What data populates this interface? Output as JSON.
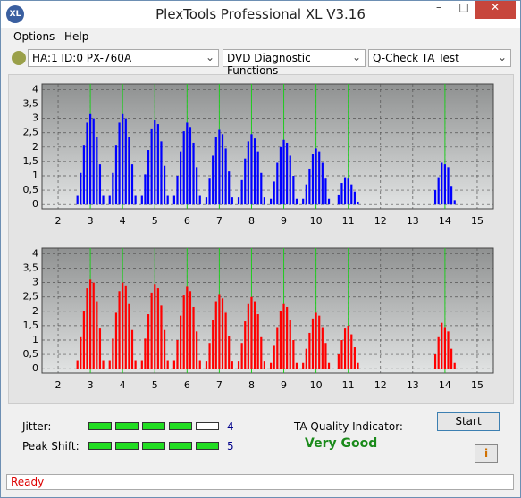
{
  "window": {
    "title": "PlexTools Professional XL V3.16"
  },
  "menu": [
    "Options",
    "Help"
  ],
  "toolbar": {
    "drive": "HA:1 ID:0  PX-760A",
    "function": "DVD Diagnostic Functions",
    "test": "Q-Check TA Test"
  },
  "chart_data": [
    {
      "type": "bar",
      "color": "#0000ff",
      "marker_color": "#22cc22",
      "grid": true,
      "xlim": [
        1.5,
        15.5
      ],
      "ylim": [
        -0.15,
        4.2
      ],
      "xticks": [
        2,
        3,
        4,
        5,
        6,
        7,
        8,
        9,
        10,
        11,
        12,
        13,
        14,
        15
      ],
      "yticks": [
        0,
        {
          "value": 0.5,
          "label": "0,5"
        },
        1,
        {
          "value": 1.5,
          "label": "1,5"
        },
        2,
        {
          "value": 2.5,
          "label": "2,5"
        },
        3,
        {
          "value": 3.5,
          "label": "3,5"
        },
        4
      ],
      "markers": [
        3,
        4,
        5,
        6,
        7,
        8,
        9,
        10,
        11,
        14
      ],
      "x": [
        2.6,
        2.7,
        2.8,
        2.9,
        3.0,
        3.1,
        3.2,
        3.3,
        3.4,
        3.6,
        3.7,
        3.8,
        3.9,
        4.0,
        4.1,
        4.2,
        4.3,
        4.4,
        4.6,
        4.7,
        4.8,
        4.9,
        5.0,
        5.1,
        5.2,
        5.3,
        5.4,
        5.6,
        5.7,
        5.8,
        5.9,
        6.0,
        6.1,
        6.2,
        6.3,
        6.4,
        6.6,
        6.7,
        6.8,
        6.9,
        7.0,
        7.1,
        7.2,
        7.3,
        7.4,
        7.6,
        7.7,
        7.8,
        7.9,
        8.0,
        8.1,
        8.2,
        8.3,
        8.4,
        8.6,
        8.7,
        8.8,
        8.9,
        9.0,
        9.1,
        9.2,
        9.3,
        9.4,
        9.6,
        9.7,
        9.8,
        9.9,
        10.0,
        10.1,
        10.2,
        10.3,
        10.4,
        10.7,
        10.8,
        10.9,
        11.0,
        11.1,
        11.2,
        11.3,
        13.7,
        13.8,
        13.9,
        14.0,
        14.1,
        14.2,
        14.3
      ],
      "values": [
        0.3,
        1.1,
        2.05,
        2.85,
        3.15,
        3.0,
        2.35,
        1.4,
        0.3,
        0.3,
        1.1,
        2.05,
        2.85,
        3.15,
        3.0,
        2.35,
        1.4,
        0.3,
        0.3,
        1.05,
        1.9,
        2.65,
        2.95,
        2.8,
        2.2,
        1.35,
        0.3,
        0.3,
        1.0,
        1.85,
        2.55,
        2.85,
        2.7,
        2.15,
        1.3,
        0.3,
        0.25,
        0.9,
        1.7,
        2.35,
        2.6,
        2.45,
        1.95,
        1.15,
        0.25,
        0.25,
        0.85,
        1.6,
        2.2,
        2.45,
        2.3,
        1.85,
        1.1,
        0.25,
        0.2,
        0.8,
        1.45,
        2.0,
        2.25,
        2.15,
        1.7,
        1.0,
        0.2,
        0.2,
        0.7,
        1.25,
        1.75,
        1.95,
        1.85,
        1.45,
        0.9,
        0.2,
        0.35,
        0.75,
        0.95,
        0.9,
        0.7,
        0.45,
        0.1,
        0.5,
        0.95,
        1.45,
        1.4,
        1.3,
        0.65,
        0.15
      ]
    },
    {
      "type": "bar",
      "color": "#ff0000",
      "marker_color": "#22cc22",
      "grid": true,
      "xlim": [
        1.5,
        15.5
      ],
      "ylim": [
        -0.15,
        4.2
      ],
      "xticks": [
        2,
        3,
        4,
        5,
        6,
        7,
        8,
        9,
        10,
        11,
        12,
        13,
        14,
        15
      ],
      "yticks": [
        0,
        {
          "value": 0.5,
          "label": "0,5"
        },
        1,
        {
          "value": 1.5,
          "label": "1,5"
        },
        2,
        {
          "value": 2.5,
          "label": "2,5"
        },
        3,
        {
          "value": 3.5,
          "label": "3,5"
        },
        4
      ],
      "markers": [
        3,
        4,
        5,
        6,
        7,
        8,
        9,
        10,
        11,
        14
      ],
      "x": [
        2.6,
        2.7,
        2.8,
        2.9,
        3.0,
        3.1,
        3.2,
        3.3,
        3.4,
        3.6,
        3.7,
        3.8,
        3.9,
        4.0,
        4.1,
        4.2,
        4.3,
        4.4,
        4.6,
        4.7,
        4.8,
        4.9,
        5.0,
        5.1,
        5.2,
        5.3,
        5.4,
        5.6,
        5.7,
        5.8,
        5.9,
        6.0,
        6.1,
        6.2,
        6.3,
        6.4,
        6.6,
        6.7,
        6.8,
        6.9,
        7.0,
        7.1,
        7.2,
        7.3,
        7.4,
        7.6,
        7.7,
        7.8,
        7.9,
        8.0,
        8.1,
        8.2,
        8.3,
        8.4,
        8.6,
        8.7,
        8.8,
        8.9,
        9.0,
        9.1,
        9.2,
        9.3,
        9.4,
        9.6,
        9.7,
        9.8,
        9.9,
        10.0,
        10.1,
        10.2,
        10.3,
        10.4,
        10.7,
        10.8,
        10.9,
        11.0,
        11.1,
        11.2,
        11.3,
        13.7,
        13.8,
        13.9,
        14.0,
        14.1,
        14.2,
        14.3
      ],
      "values": [
        0.3,
        1.1,
        2.0,
        2.8,
        3.1,
        3.0,
        2.35,
        1.4,
        0.3,
        0.3,
        1.05,
        1.95,
        2.7,
        3.0,
        2.9,
        2.25,
        1.35,
        0.3,
        0.3,
        1.05,
        1.9,
        2.65,
        2.95,
        2.8,
        2.2,
        1.35,
        0.3,
        0.3,
        1.0,
        1.85,
        2.55,
        2.85,
        2.7,
        2.15,
        1.3,
        0.3,
        0.25,
        0.9,
        1.7,
        2.35,
        2.6,
        2.45,
        1.95,
        1.15,
        0.25,
        0.25,
        0.9,
        1.65,
        2.25,
        2.5,
        2.35,
        1.9,
        1.1,
        0.25,
        0.2,
        0.8,
        1.45,
        2.0,
        2.25,
        2.15,
        1.7,
        1.0,
        0.2,
        0.2,
        0.7,
        1.25,
        1.75,
        1.95,
        1.85,
        1.45,
        0.9,
        0.2,
        0.5,
        1.0,
        1.4,
        1.5,
        1.2,
        0.75,
        0.2,
        0.5,
        1.1,
        1.6,
        1.45,
        1.3,
        0.7,
        0.2
      ]
    }
  ],
  "results": {
    "jitter": {
      "label": "Jitter:",
      "value": 4
    },
    "peak_shift": {
      "label": "Peak Shift:",
      "value": 5
    },
    "quality_label": "TA Quality Indicator:",
    "quality": "Very Good",
    "start": "Start"
  },
  "status": "Ready"
}
